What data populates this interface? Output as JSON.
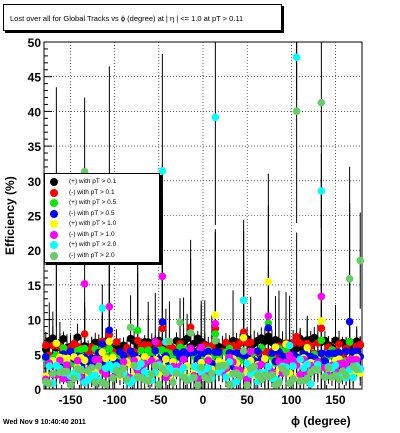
{
  "chart_data": {
    "type": "scatter",
    "title": "Lost over all for Global Tracks vs ϕ (degree) at | η | <= 1.0 at pT > 0.11",
    "xlabel": "ϕ (degree)",
    "ylabel": "Efficiency (%)",
    "xlim": [
      -180,
      180
    ],
    "ylim": [
      0,
      50
    ],
    "x_ticks": [
      "-150",
      "-100",
      "-50",
      "0",
      "50",
      "100",
      "150"
    ],
    "y_ticks": [
      "0",
      "5",
      "10",
      "15",
      "20",
      "25",
      "30",
      "35",
      "40",
      "45",
      "50"
    ],
    "grid": true,
    "legend_position": "left-middle",
    "bins": 90,
    "series": [
      {
        "name": "(+) with pT > 0.1",
        "color": "#000000",
        "base": 6.5,
        "spread": 1.0,
        "peak": 8
      },
      {
        "name": "(-) with pT > 0.1",
        "color": "#ff0000",
        "base": 5.8,
        "spread": 1.0,
        "peak": 9
      },
      {
        "name": "(+) with pT > 0.5",
        "color": "#00ee00",
        "base": 4.8,
        "spread": 1.2,
        "peak": 10
      },
      {
        "name": "(-) with pT > 0.5",
        "color": "#0000ff",
        "base": 4.3,
        "spread": 1.2,
        "peak": 10
      },
      {
        "name": "(+) with pT > 1.0",
        "color": "#ffff00",
        "base": 3.2,
        "spread": 1.5,
        "peak": 16
      },
      {
        "name": "(-) with pT > 1.0",
        "color": "#ff00ff",
        "base": 2.8,
        "spread": 1.5,
        "peak": 17
      },
      {
        "name": "(+) with pT > 2.0",
        "color": "#00ffff",
        "base": 2.2,
        "spread": 1.5,
        "peak": 48
      },
      {
        "name": "(-) with pT > 2.0",
        "color": "#66cc66",
        "base": 2.0,
        "spread": 1.5,
        "peak": 44
      }
    ],
    "sector_edges": [
      -165,
      -135,
      -105,
      -75,
      -45,
      -15,
      15,
      45,
      75,
      105,
      135,
      165
    ]
  },
  "footer": {
    "timestamp": "Wed Nov  9 10:40:40 2011"
  }
}
